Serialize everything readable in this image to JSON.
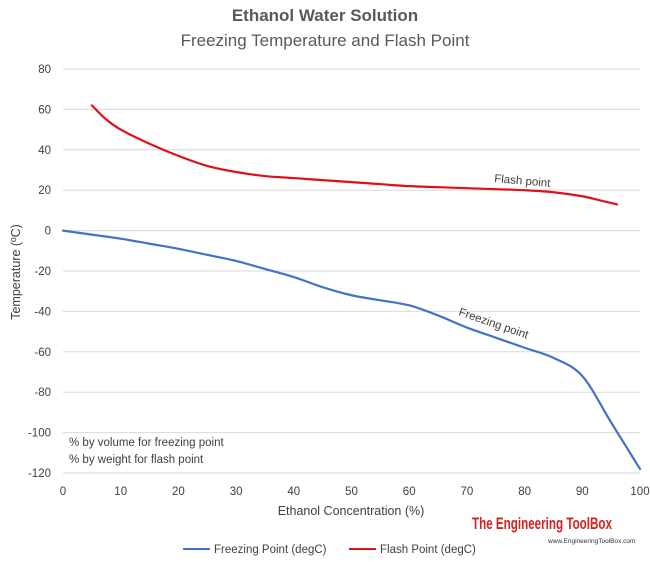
{
  "chart_data": {
    "type": "line",
    "title": "Ethanol Water Solution",
    "subtitle": "Freezing Temperature and Flash Point",
    "xlabel": "Ethanol Concentration (%)",
    "ylabel": "Temperature (ºC)",
    "xlim": [
      0,
      100
    ],
    "ylim": [
      -120,
      80
    ],
    "x_ticks": [
      "0",
      "10",
      "20",
      "30",
      "40",
      "50",
      "60",
      "70",
      "80",
      "90",
      "100"
    ],
    "y_ticks": [
      "80",
      "60",
      "40",
      "20",
      "0",
      "-20",
      "-40",
      "-60",
      "-80",
      "-100",
      "-120"
    ],
    "grid": "horizontal",
    "series": [
      {
        "name": "Freezing Point (degC)",
        "color": "#4472c4",
        "label": "Freezing point",
        "x": [
          0,
          5,
          10,
          15,
          20,
          25,
          30,
          35,
          40,
          45,
          50,
          55,
          60,
          65,
          70,
          75,
          80,
          85,
          90,
          95,
          100
        ],
        "y": [
          0,
          -2,
          -4,
          -6.5,
          -9,
          -12,
          -15,
          -19,
          -23,
          -28,
          -32,
          -34.5,
          -37,
          -42,
          -48,
          -53,
          -58,
          -63,
          -72,
          -95,
          -118
        ]
      },
      {
        "name": "Flash Point (degC)",
        "color": "#e0101a",
        "label": "Flash point",
        "x": [
          5,
          7.5,
          10,
          15,
          20,
          25,
          30,
          35,
          40,
          45,
          50,
          55,
          60,
          65,
          70,
          75,
          80,
          85,
          90,
          93,
          96
        ],
        "y": [
          62,
          55,
          50,
          43,
          37,
          32,
          29,
          27,
          26,
          25,
          24,
          23,
          22,
          21.5,
          21,
          20.5,
          20,
          19,
          17,
          15,
          13
        ]
      }
    ],
    "annotations": [
      "% by volume for freezing point",
      "% by weight for flash point"
    ],
    "legend": "bottom"
  },
  "brand": {
    "name": "The Engineering ToolBox",
    "url": "www.EngineeringToolBox.com"
  }
}
